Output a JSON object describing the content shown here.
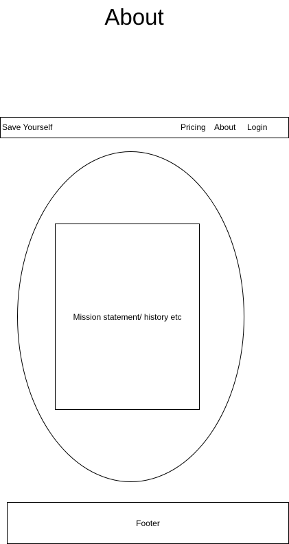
{
  "page": {
    "title": "About"
  },
  "navbar": {
    "brand": "Save Yourself",
    "links": [
      "Pricing",
      "About",
      "Login"
    ]
  },
  "main": {
    "content_text": "Mission statement/ history etc"
  },
  "footer": {
    "label": "Footer"
  }
}
